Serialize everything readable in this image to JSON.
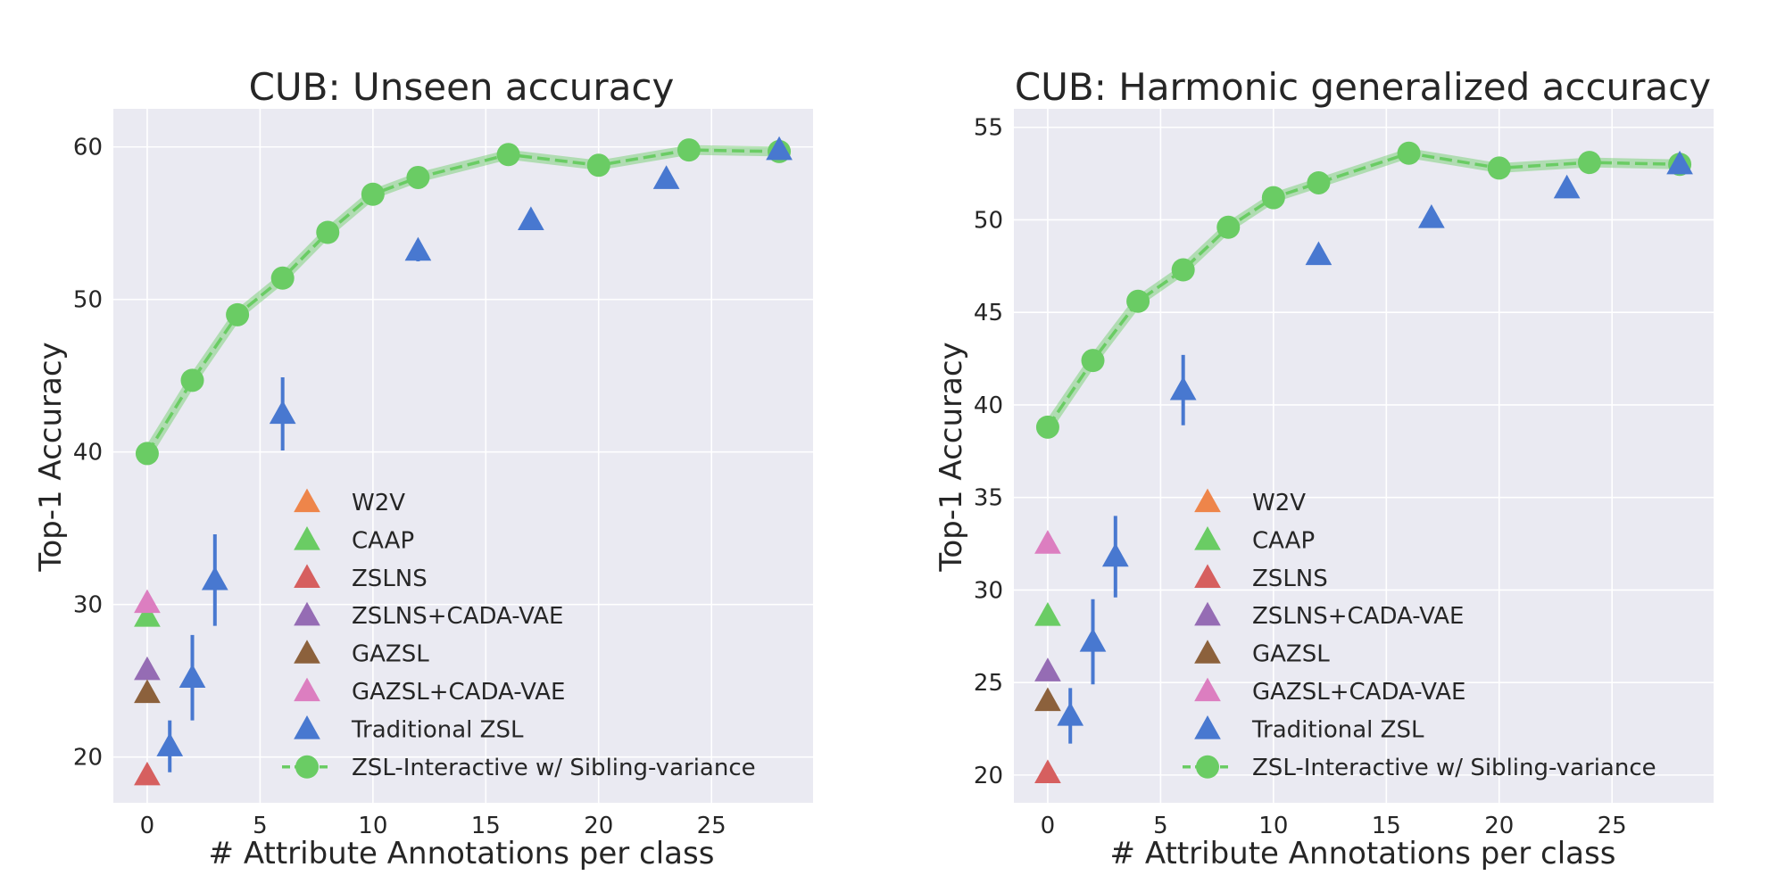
{
  "chart_data": [
    {
      "type": "scatter",
      "title": "CUB: Unseen accuracy",
      "xlabel": "# Attribute Annotations per class",
      "ylabel": "Top-1 Accuracy",
      "xlim": [
        -1.5,
        29.5
      ],
      "ylim": [
        17,
        62.5
      ],
      "xticks": [
        0,
        5,
        10,
        15,
        20,
        25
      ],
      "yticks": [
        20,
        30,
        40,
        50,
        60
      ],
      "grid": true,
      "legend_position": "lower-right",
      "series": [
        {
          "name": "W2V",
          "kind": "marker",
          "color": "#ee854a",
          "points": []
        },
        {
          "name": "CAAP",
          "kind": "marker",
          "color": "#6acc64",
          "points": [
            {
              "x": 0,
              "y": 29.2
            }
          ]
        },
        {
          "name": "ZSLNS",
          "kind": "marker",
          "color": "#d65f5f",
          "points": [
            {
              "x": 0,
              "y": 18.8
            }
          ]
        },
        {
          "name": "ZSLNS+CADA-VAE",
          "kind": "marker",
          "color": "#956cb4",
          "points": [
            {
              "x": 0,
              "y": 25.7
            }
          ]
        },
        {
          "name": "GAZSL",
          "kind": "marker",
          "color": "#8c613c",
          "points": [
            {
              "x": 0,
              "y": 24.2
            }
          ]
        },
        {
          "name": "GAZSL+CADA-VAE",
          "kind": "marker",
          "color": "#dc7ec0",
          "points": [
            {
              "x": 0,
              "y": 30.1
            }
          ]
        },
        {
          "name": "Traditional ZSL",
          "kind": "marker",
          "color": "#4878d0",
          "points": [
            {
              "x": 1,
              "y": 20.7,
              "err": 1.7
            },
            {
              "x": 2,
              "y": 25.2,
              "err": 2.8
            },
            {
              "x": 3,
              "y": 31.6,
              "err": 3.0
            },
            {
              "x": 6,
              "y": 42.5,
              "err": 2.4
            },
            {
              "x": 12,
              "y": 53.2,
              "err": 0.7
            },
            {
              "x": 17,
              "y": 55.2,
              "err": 0
            },
            {
              "x": 23,
              "y": 57.9,
              "err": 0
            },
            {
              "x": 28,
              "y": 59.8,
              "err": 0
            }
          ]
        },
        {
          "name": "ZSL-Interactive w/ Sibling-variance",
          "kind": "line",
          "color": "#6acc64",
          "points": [
            {
              "x": 0,
              "y": 39.9
            },
            {
              "x": 2,
              "y": 44.7
            },
            {
              "x": 4,
              "y": 49.0
            },
            {
              "x": 6,
              "y": 51.4
            },
            {
              "x": 8,
              "y": 54.4
            },
            {
              "x": 10,
              "y": 56.9
            },
            {
              "x": 12,
              "y": 58.0
            },
            {
              "x": 16,
              "y": 59.5
            },
            {
              "x": 20,
              "y": 58.8
            },
            {
              "x": 24,
              "y": 59.8
            },
            {
              "x": 28,
              "y": 59.7
            }
          ]
        }
      ]
    },
    {
      "type": "scatter",
      "title": "CUB: Harmonic generalized accuracy",
      "xlabel": "# Attribute Annotations per class",
      "ylabel": "Top-1 Accuracy",
      "xlim": [
        -1.5,
        29.5
      ],
      "ylim": [
        18.5,
        56
      ],
      "xticks": [
        0,
        5,
        10,
        15,
        20,
        25
      ],
      "yticks": [
        20,
        25,
        30,
        35,
        40,
        45,
        50,
        55
      ],
      "grid": true,
      "legend_position": "lower-right",
      "series": [
        {
          "name": "W2V",
          "kind": "marker",
          "color": "#ee854a",
          "points": []
        },
        {
          "name": "CAAP",
          "kind": "marker",
          "color": "#6acc64",
          "points": [
            {
              "x": 0,
              "y": 28.6
            }
          ]
        },
        {
          "name": "ZSLNS",
          "kind": "marker",
          "color": "#d65f5f",
          "points": [
            {
              "x": 0,
              "y": 20.1
            }
          ]
        },
        {
          "name": "ZSLNS+CADA-VAE",
          "kind": "marker",
          "color": "#956cb4",
          "points": [
            {
              "x": 0,
              "y": 25.6
            }
          ]
        },
        {
          "name": "GAZSL",
          "kind": "marker",
          "color": "#8c613c",
          "points": [
            {
              "x": 0,
              "y": 24.0
            }
          ]
        },
        {
          "name": "GAZSL+CADA-VAE",
          "kind": "marker",
          "color": "#dc7ec0",
          "points": [
            {
              "x": 0,
              "y": 32.5
            }
          ]
        },
        {
          "name": "Traditional ZSL",
          "kind": "marker",
          "color": "#4878d0",
          "points": [
            {
              "x": 1,
              "y": 23.2,
              "err": 1.5
            },
            {
              "x": 2,
              "y": 27.2,
              "err": 2.3
            },
            {
              "x": 3,
              "y": 31.8,
              "err": 2.2
            },
            {
              "x": 6,
              "y": 40.8,
              "err": 1.9
            },
            {
              "x": 12,
              "y": 48.1,
              "err": 0
            },
            {
              "x": 17,
              "y": 50.1,
              "err": 0
            },
            {
              "x": 23,
              "y": 51.7,
              "err": 0
            },
            {
              "x": 28,
              "y": 53.0,
              "err": 0
            }
          ]
        },
        {
          "name": "ZSL-Interactive w/ Sibling-variance",
          "kind": "line",
          "color": "#6acc64",
          "points": [
            {
              "x": 0,
              "y": 38.8
            },
            {
              "x": 2,
              "y": 42.4
            },
            {
              "x": 4,
              "y": 45.6
            },
            {
              "x": 6,
              "y": 47.3
            },
            {
              "x": 8,
              "y": 49.6
            },
            {
              "x": 10,
              "y": 51.2
            },
            {
              "x": 12,
              "y": 52.0
            },
            {
              "x": 16,
              "y": 53.6
            },
            {
              "x": 20,
              "y": 52.8
            },
            {
              "x": 24,
              "y": 53.1
            },
            {
              "x": 28,
              "y": 53.0
            }
          ]
        }
      ]
    }
  ]
}
